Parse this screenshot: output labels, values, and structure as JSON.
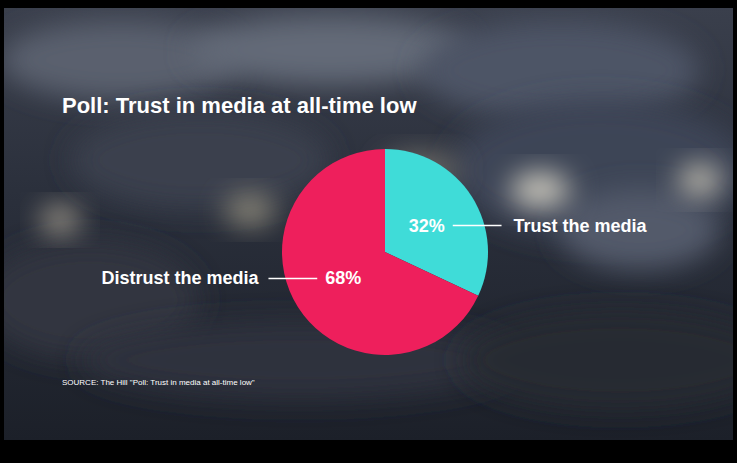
{
  "chart_data": {
    "type": "pie",
    "title": "Poll: Trust in media at all-time low",
    "categories": [
      "Trust the media",
      "Distrust the media"
    ],
    "values": [
      32,
      68
    ],
    "value_labels": [
      "32%",
      "68%"
    ],
    "colors": [
      "#3fdcd8",
      "#ee1f5c"
    ],
    "data_labels": true,
    "source": "SOURCE:  The Hill \"Poll: Trust in media at all-time low\""
  }
}
